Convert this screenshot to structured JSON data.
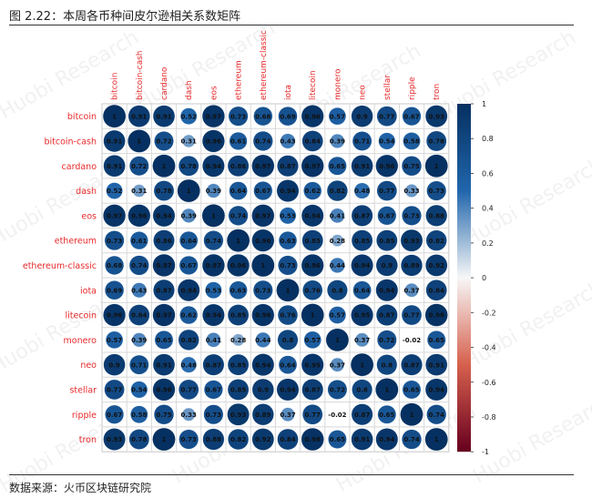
{
  "figure": {
    "title": "图 2.22：本周各币种间皮尔逊相关系数矩阵",
    "source": "数据来源：火币区块链研究院",
    "watermark": "Huobi Research"
  },
  "colors": {
    "positive_dark": "#053061",
    "positive_mid": "#2166ac",
    "neutral": "#f7f7f7",
    "negative_mid": "#d6604d",
    "negative_dark": "#67001f",
    "label": "#e8292b"
  },
  "chart_data": {
    "type": "heatmap",
    "style": "circle correlation matrix",
    "labels": [
      "bitcoin",
      "bitcoin-cash",
      "cardano",
      "dash",
      "eos",
      "ethereum",
      "ethereum-classic",
      "iota",
      "litecoin",
      "monero",
      "neo",
      "stellar",
      "ripple",
      "tron"
    ],
    "matrix": [
      [
        1,
        0.91,
        0.91,
        0.52,
        0.97,
        0.73,
        0.68,
        0.69,
        0.96,
        0.57,
        0.9,
        0.77,
        0.67,
        0.93
      ],
      [
        0.91,
        1,
        0.72,
        0.31,
        0.96,
        0.61,
        0.74,
        0.43,
        0.84,
        0.39,
        0.71,
        0.54,
        0.58,
        0.78
      ],
      [
        0.91,
        0.72,
        1,
        0.78,
        0.94,
        0.86,
        0.97,
        0.87,
        0.97,
        0.65,
        0.91,
        0.96,
        0.75,
        1
      ],
      [
        0.52,
        0.31,
        0.78,
        1,
        0.39,
        0.64,
        0.67,
        0.94,
        0.62,
        0.82,
        0.48,
        0.77,
        0.33,
        0.73
      ],
      [
        0.97,
        0.96,
        0.94,
        0.39,
        1,
        0.74,
        0.97,
        0.53,
        0.94,
        0.41,
        0.87,
        0.67,
        0.73,
        0.88
      ],
      [
        0.73,
        0.61,
        0.86,
        0.64,
        0.74,
        1,
        0.96,
        0.63,
        0.85,
        0.28,
        0.85,
        0.85,
        0.93,
        0.82
      ],
      [
        0.68,
        0.74,
        0.97,
        0.67,
        0.97,
        0.96,
        1,
        0.73,
        0.96,
        0.44,
        0.94,
        0.9,
        0.89,
        0.92
      ],
      [
        0.69,
        0.43,
        0.87,
        0.94,
        0.53,
        0.63,
        0.73,
        1,
        0.76,
        0.8,
        0.64,
        0.94,
        0.37,
        0.84
      ],
      [
        0.96,
        0.84,
        0.97,
        0.62,
        0.94,
        0.85,
        0.96,
        0.76,
        1,
        0.57,
        0.95,
        0.87,
        0.77,
        0.98
      ],
      [
        0.57,
        0.39,
        0.65,
        0.82,
        0.41,
        0.28,
        0.44,
        0.8,
        0.57,
        1,
        0.37,
        0.72,
        -0.02,
        0.65
      ],
      [
        0.9,
        0.71,
        0.91,
        0.48,
        0.87,
        0.85,
        0.94,
        0.64,
        0.95,
        0.37,
        1,
        0.8,
        0.87,
        0.91
      ],
      [
        0.77,
        0.54,
        0.96,
        0.77,
        0.67,
        0.85,
        0.9,
        0.94,
        0.87,
        0.72,
        0.8,
        1,
        0.65,
        0.94
      ],
      [
        0.67,
        0.58,
        0.75,
        0.33,
        0.73,
        0.93,
        0.89,
        0.37,
        0.77,
        -0.02,
        0.87,
        0.65,
        1,
        0.74
      ],
      [
        0.93,
        0.78,
        1,
        0.73,
        0.88,
        0.82,
        0.92,
        0.84,
        0.98,
        0.65,
        0.91,
        0.94,
        0.74,
        1
      ]
    ],
    "colorbar": {
      "range": [
        -1,
        1
      ],
      "ticks": [
        1,
        0.8,
        0.6,
        0.4,
        0.2,
        0,
        -0.2,
        -0.4,
        -0.6,
        -0.8,
        -1
      ]
    }
  }
}
